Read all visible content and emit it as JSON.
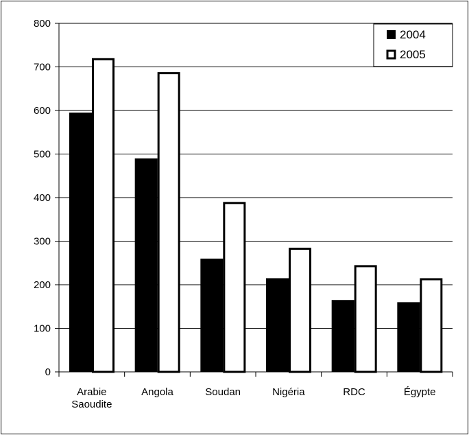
{
  "chart_data": {
    "type": "bar",
    "title": "",
    "xlabel": "",
    "ylabel": "",
    "categories": [
      [
        "Arabie",
        "Saoudite"
      ],
      [
        "Angola"
      ],
      [
        "Soudan"
      ],
      [
        "Nigéria"
      ],
      [
        "RDC"
      ],
      [
        "Égypte"
      ]
    ],
    "series": [
      {
        "name": "2004",
        "values": [
          595,
          490,
          260,
          215,
          165,
          160
        ],
        "fill": "#000000"
      },
      {
        "name": "2005",
        "values": [
          720,
          688,
          390,
          285,
          245,
          215
        ],
        "fill": "#ffffff"
      }
    ],
    "ylim": [
      0,
      800
    ],
    "yticks": [
      "0",
      "100",
      "200",
      "300",
      "400",
      "500",
      "600",
      "700",
      "800"
    ],
    "grid": true,
    "legend_position": "top-right"
  }
}
